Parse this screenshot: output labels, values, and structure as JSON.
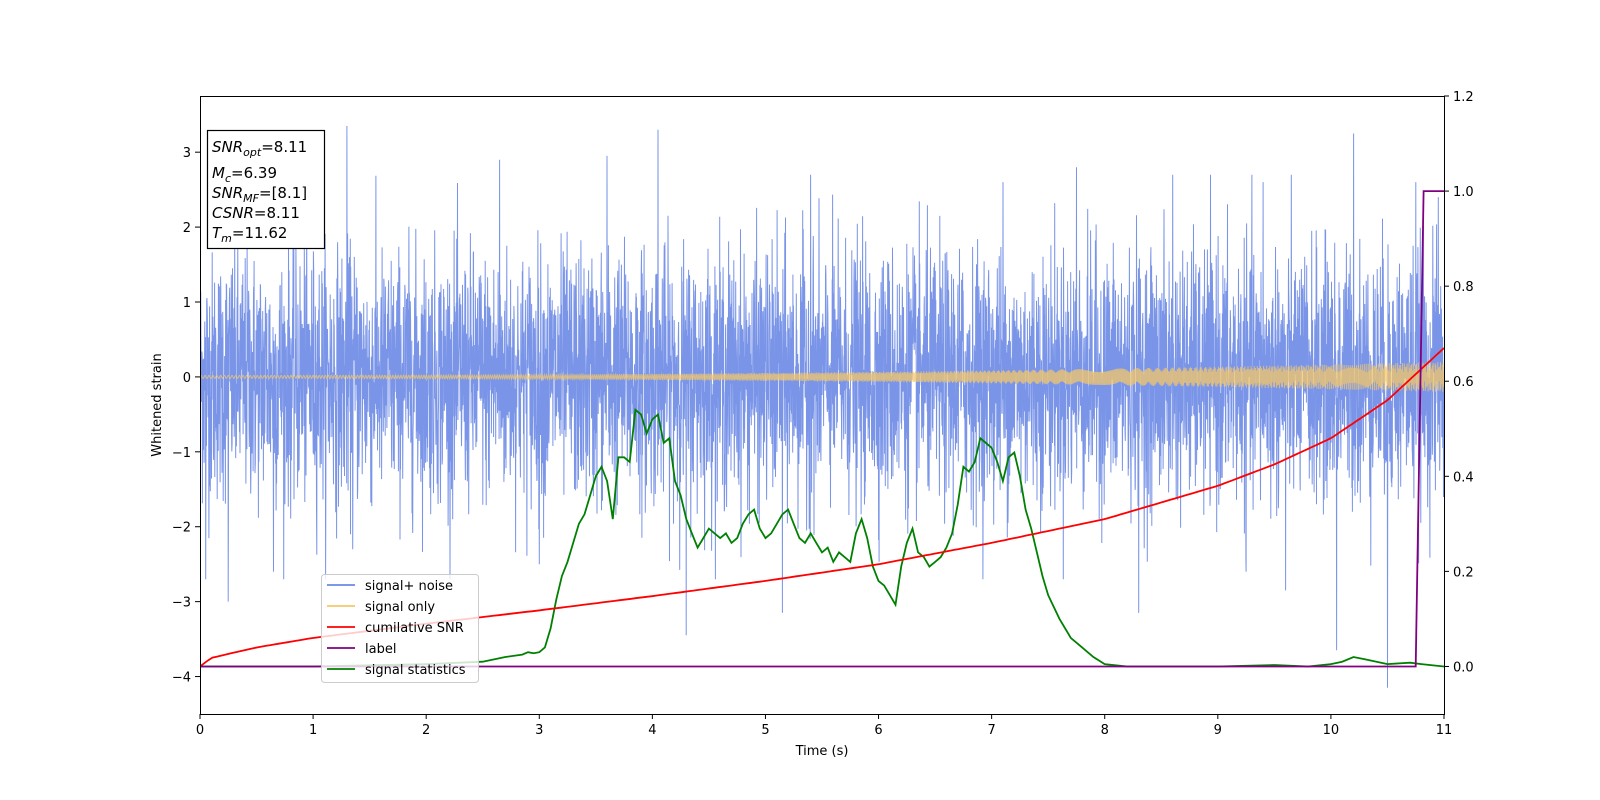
{
  "chart_data": {
    "type": "line",
    "xlabel": "Time (s)",
    "ylabel": "Whitened strain",
    "xlim": [
      0,
      11
    ],
    "ylim": [
      -4.5,
      3.75
    ],
    "y2lim": [
      -0.1,
      1.2
    ],
    "x_ticks": [
      "0",
      "1",
      "2",
      "3",
      "4",
      "5",
      "6",
      "7",
      "8",
      "9",
      "10",
      "11"
    ],
    "y_ticks": [
      "−4",
      "−3",
      "−2",
      "−1",
      "0",
      "1",
      "2",
      "3"
    ],
    "y2_ticks": [
      "0.0",
      "0.2",
      "0.4",
      "0.6",
      "0.8",
      "1.0",
      "1.2"
    ],
    "grid": false,
    "legend_position": "lower-left",
    "annotation": {
      "snr_opt": {
        "main": "SNR",
        "sub": "opt",
        "value": "=8.11"
      },
      "mc": {
        "main": "M",
        "sub": "c",
        "value": "=6.39"
      },
      "snr_mf": {
        "main": "SNR",
        "sub": "MF",
        "value": "=[8.1]"
      },
      "csnr": {
        "main": "CSNR",
        "value": "=8.11"
      },
      "tm": {
        "main": "T",
        "sub": "m",
        "value": "=11.62"
      }
    },
    "series": [
      {
        "name": "signal+ noise",
        "color": "#6b8ae6",
        "axis": "left",
        "kind": "noise",
        "envelope_typical": 1.6,
        "peaks": [
          [
            0.05,
            -2.7
          ],
          [
            0.25,
            -3.0
          ],
          [
            0.65,
            -2.6
          ],
          [
            1.3,
            3.35
          ],
          [
            1.35,
            -2.3
          ],
          [
            2.65,
            2.9
          ],
          [
            3.0,
            -2.5
          ],
          [
            3.6,
            2.95
          ],
          [
            4.05,
            3.3
          ],
          [
            4.3,
            -3.45
          ],
          [
            5.15,
            -3.15
          ],
          [
            5.4,
            2.7
          ],
          [
            7.1,
            2.6
          ],
          [
            7.75,
            2.8
          ],
          [
            8.3,
            -3.15
          ],
          [
            8.6,
            2.7
          ],
          [
            9.25,
            -2.6
          ],
          [
            9.4,
            2.6
          ],
          [
            9.6,
            -2.85
          ],
          [
            10.05,
            -3.65
          ],
          [
            10.2,
            3.25
          ],
          [
            10.5,
            -4.15
          ],
          [
            10.75,
            2.6
          ],
          [
            10.95,
            2.4
          ]
        ]
      },
      {
        "name": "signal only",
        "color": "#f5c86a",
        "axis": "left",
        "kind": "chirp",
        "amplitude_start": 0.02,
        "amplitude_end": 0.2
      },
      {
        "name": "cumilative SNR",
        "color": "#ff0000",
        "axis": "right",
        "x": [
          0,
          0.1,
          0.5,
          1,
          2,
          3,
          4,
          5,
          6,
          7,
          8,
          9,
          9.5,
          10,
          10.5,
          11
        ],
        "y": [
          0.0,
          0.018,
          0.04,
          0.06,
          0.09,
          0.118,
          0.148,
          0.18,
          0.215,
          0.26,
          0.31,
          0.38,
          0.425,
          0.48,
          0.56,
          0.67
        ]
      },
      {
        "name": "label",
        "color": "#800080",
        "axis": "right",
        "x": [
          0,
          10.75,
          10.82,
          11
        ],
        "y": [
          0.0,
          0.0,
          1.0,
          1.0
        ]
      },
      {
        "name": "signal statistics",
        "color": "#008000",
        "axis": "right",
        "x": [
          0,
          1,
          2,
          2.5,
          2.7,
          2.85,
          2.9,
          2.95,
          3.0,
          3.05,
          3.1,
          3.15,
          3.2,
          3.25,
          3.3,
          3.35,
          3.4,
          3.45,
          3.5,
          3.55,
          3.6,
          3.65,
          3.7,
          3.75,
          3.8,
          3.85,
          3.9,
          3.95,
          4.0,
          4.05,
          4.1,
          4.15,
          4.2,
          4.25,
          4.3,
          4.35,
          4.4,
          4.45,
          4.5,
          4.55,
          4.6,
          4.65,
          4.7,
          4.75,
          4.8,
          4.85,
          4.9,
          4.95,
          5.0,
          5.05,
          5.1,
          5.15,
          5.2,
          5.25,
          5.3,
          5.35,
          5.4,
          5.45,
          5.5,
          5.55,
          5.6,
          5.65,
          5.7,
          5.75,
          5.8,
          5.85,
          5.9,
          5.95,
          6.0,
          6.05,
          6.1,
          6.15,
          6.2,
          6.25,
          6.3,
          6.35,
          6.4,
          6.45,
          6.5,
          6.55,
          6.6,
          6.65,
          6.7,
          6.75,
          6.8,
          6.85,
          6.9,
          6.95,
          7.0,
          7.05,
          7.1,
          7.15,
          7.2,
          7.25,
          7.3,
          7.35,
          7.4,
          7.45,
          7.5,
          7.6,
          7.7,
          7.8,
          7.9,
          8.0,
          8.2,
          8.5,
          9.0,
          9.5,
          9.8,
          10.0,
          10.1,
          10.2,
          10.3,
          10.5,
          10.7,
          10.8,
          11.0
        ],
        "y": [
          0.0,
          0.0,
          0.005,
          0.01,
          0.02,
          0.025,
          0.03,
          0.028,
          0.03,
          0.04,
          0.08,
          0.14,
          0.19,
          0.22,
          0.26,
          0.3,
          0.32,
          0.36,
          0.4,
          0.42,
          0.39,
          0.31,
          0.44,
          0.44,
          0.43,
          0.54,
          0.53,
          0.49,
          0.52,
          0.53,
          0.47,
          0.48,
          0.39,
          0.36,
          0.31,
          0.28,
          0.25,
          0.27,
          0.29,
          0.28,
          0.27,
          0.28,
          0.26,
          0.27,
          0.3,
          0.32,
          0.33,
          0.29,
          0.27,
          0.28,
          0.3,
          0.32,
          0.33,
          0.3,
          0.27,
          0.26,
          0.28,
          0.26,
          0.24,
          0.25,
          0.22,
          0.24,
          0.23,
          0.22,
          0.28,
          0.31,
          0.27,
          0.21,
          0.18,
          0.17,
          0.15,
          0.13,
          0.21,
          0.26,
          0.29,
          0.24,
          0.23,
          0.21,
          0.22,
          0.23,
          0.25,
          0.28,
          0.34,
          0.42,
          0.41,
          0.43,
          0.48,
          0.47,
          0.46,
          0.43,
          0.39,
          0.44,
          0.45,
          0.4,
          0.33,
          0.29,
          0.24,
          0.19,
          0.15,
          0.1,
          0.06,
          0.04,
          0.02,
          0.005,
          0.0,
          0.0,
          0.0,
          0.003,
          0.0,
          0.005,
          0.01,
          0.02,
          0.015,
          0.005,
          0.008,
          0.005,
          0.0
        ]
      }
    ]
  }
}
